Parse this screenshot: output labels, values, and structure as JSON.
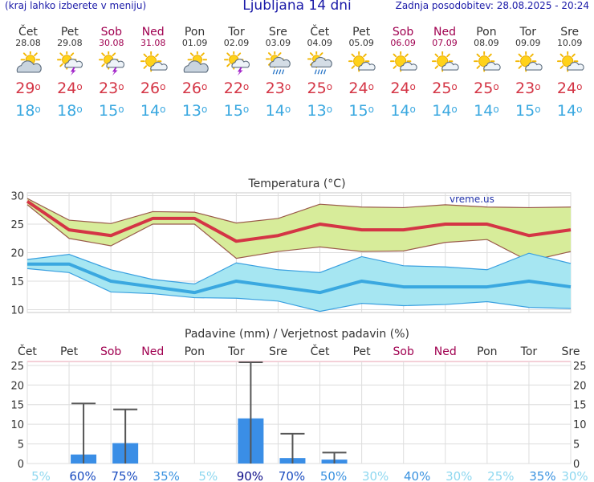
{
  "header": {
    "hint": "(kraj lahko izberete v meniju)",
    "title": "Ljubljana 14 dni",
    "updated": "Zadnja posodobitev: 28.08.2025 - 20:24"
  },
  "days": [
    {
      "name": "Čet",
      "date": "28.08",
      "weekend": false,
      "icon": "partly-cloudy-icon",
      "max": "29",
      "min": "18"
    },
    {
      "name": "Pet",
      "date": "29.08",
      "weekend": false,
      "icon": "sun-cloud-thunder-icon",
      "max": "24",
      "min": "18"
    },
    {
      "name": "Sob",
      "date": "30.08",
      "weekend": true,
      "icon": "sun-cloud-thunder-icon",
      "max": "23",
      "min": "15"
    },
    {
      "name": "Ned",
      "date": "31.08",
      "weekend": true,
      "icon": "sun-small-cloud-icon",
      "max": "26",
      "min": "14"
    },
    {
      "name": "Pon",
      "date": "01.09",
      "weekend": false,
      "icon": "partly-cloudy-icon",
      "max": "26",
      "min": "13"
    },
    {
      "name": "Tor",
      "date": "02.09",
      "weekend": false,
      "icon": "sun-cloud-thunder-icon",
      "max": "22",
      "min": "15"
    },
    {
      "name": "Sre",
      "date": "03.09",
      "weekend": false,
      "icon": "sun-cloud-rain-icon",
      "max": "23",
      "min": "14"
    },
    {
      "name": "Čet",
      "date": "04.09",
      "weekend": false,
      "icon": "sun-cloud-rain-icon",
      "max": "25",
      "min": "13"
    },
    {
      "name": "Pet",
      "date": "05.09",
      "weekend": false,
      "icon": "sun-small-cloud-icon",
      "max": "24",
      "min": "15"
    },
    {
      "name": "Sob",
      "date": "06.09",
      "weekend": true,
      "icon": "sun-small-cloud-icon",
      "max": "24",
      "min": "14"
    },
    {
      "name": "Ned",
      "date": "07.09",
      "weekend": true,
      "icon": "sun-small-cloud-icon",
      "max": "25",
      "min": "14"
    },
    {
      "name": "Pon",
      "date": "08.09",
      "weekend": false,
      "icon": "sun-small-cloud-icon",
      "max": "25",
      "min": "14"
    },
    {
      "name": "Tor",
      "date": "09.09",
      "weekend": false,
      "icon": "sun-small-cloud-icon",
      "max": "23",
      "min": "15"
    },
    {
      "name": "Sre",
      "date": "10.09",
      "weekend": false,
      "icon": "sun-small-cloud-icon",
      "max": "24",
      "min": "14"
    }
  ],
  "colors": {
    "max": "#d43545",
    "min": "#3aa8e0",
    "maxBand": "#d7ec9a",
    "minBand": "#a6e6f2",
    "precipBar": "#3a8ee6",
    "weekend": "#a00050"
  },
  "chart_data": [
    {
      "type": "line",
      "title": "Temperatura (°C)",
      "watermark": "vreme.us",
      "x": [
        "Čet",
        "Pet",
        "Sob",
        "Ned",
        "Pon",
        "Tor",
        "Sre",
        "Čet",
        "Pet",
        "Sob",
        "Ned",
        "Pon",
        "Tor",
        "Sre"
      ],
      "ylim": [
        9.5,
        30.5
      ],
      "yticks": [
        10,
        15,
        20,
        25,
        30
      ],
      "grid": true,
      "series": [
        {
          "role": "max",
          "values": [
            29,
            24,
            23,
            26,
            26,
            22,
            23,
            25,
            24,
            24,
            25,
            25,
            23,
            24
          ]
        },
        {
          "role": "max-band-upper",
          "values": [
            29.5,
            25.7,
            25.1,
            27.2,
            27.1,
            25.2,
            26,
            28.5,
            28,
            27.9,
            28.4,
            28,
            27.9,
            28
          ]
        },
        {
          "role": "max-band-lower",
          "values": [
            28.4,
            22.5,
            21.2,
            25,
            25,
            19,
            20.2,
            21,
            20.2,
            20.3,
            21.8,
            22.3,
            18.5,
            20.2
          ]
        },
        {
          "role": "min",
          "values": [
            18,
            18,
            15,
            14,
            13,
            15,
            14,
            13,
            15,
            14,
            14,
            14,
            15,
            14
          ]
        },
        {
          "role": "min-band-upper",
          "values": [
            18.8,
            19.7,
            17,
            15.3,
            14.5,
            18.2,
            17,
            16.5,
            19.3,
            17.7,
            17.5,
            17,
            19.9,
            18.1
          ]
        },
        {
          "role": "min-band-lower",
          "values": [
            17.2,
            16.5,
            13.1,
            12.8,
            12.1,
            12,
            11.5,
            9.7,
            11.1,
            10.7,
            10.9,
            11.4,
            10.4,
            10.2
          ]
        }
      ]
    },
    {
      "type": "bar",
      "title": "Padavine (mm) / Verjetnost padavin (%)",
      "categories": [
        "Čet",
        "Pet",
        "Sob",
        "Ned",
        "Pon",
        "Tor",
        "Sre",
        "Čet",
        "Pet",
        "Sob",
        "Ned",
        "Pon",
        "Tor",
        "Sre"
      ],
      "ylim": [
        0,
        26
      ],
      "yticks": [
        0,
        5,
        10,
        15,
        20,
        25
      ],
      "values": [
        0,
        2.3,
        5.2,
        0,
        0,
        11.5,
        1.4,
        1,
        0,
        0,
        0,
        0,
        0,
        0
      ],
      "maxValues": [
        0,
        15.3,
        13.8,
        0,
        0,
        25.8,
        7.6,
        2.8,
        0,
        0,
        0,
        0,
        0,
        0
      ],
      "probabilities": [
        "5%",
        "60%",
        "75%",
        "35%",
        "5%",
        "90%",
        "70%",
        "50%",
        "30%",
        "40%",
        "30%",
        "25%",
        "35%",
        "30%"
      ]
    }
  ]
}
